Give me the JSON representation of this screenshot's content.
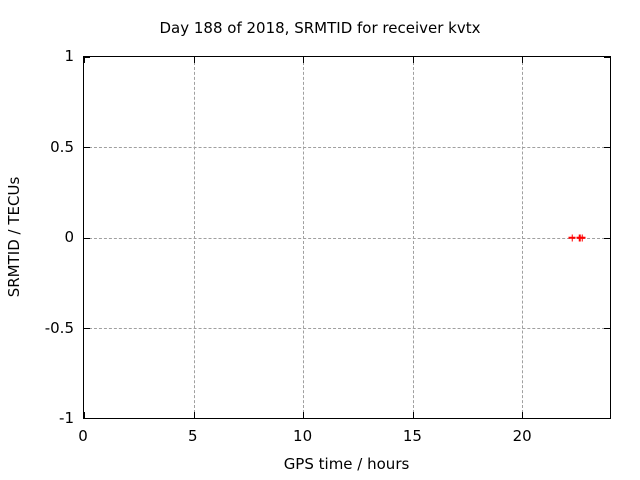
{
  "colors": {
    "marker": "#ff0000",
    "grid": "#a0a0a0",
    "axis": "#000000",
    "background": "#ffffff"
  },
  "chart_data": {
    "type": "scatter",
    "marker_style": "plus",
    "title": "Day 188 of 2018, SRMTID for receiver kvtx",
    "xlabel": "GPS time / hours",
    "ylabel": "SRMTID / TECUs",
    "xlim": [
      0,
      24
    ],
    "ylim": [
      -1,
      1
    ],
    "grid": true,
    "legend": "none",
    "xticks": [
      {
        "value": 0,
        "label": "0"
      },
      {
        "value": 5,
        "label": "5"
      },
      {
        "value": 10,
        "label": "10"
      },
      {
        "value": 15,
        "label": "15"
      },
      {
        "value": 20,
        "label": "20"
      }
    ],
    "yticks": [
      {
        "value": 1,
        "label": "1"
      },
      {
        "value": 0.5,
        "label": "0.5"
      },
      {
        "value": 0,
        "label": "0"
      },
      {
        "value": -0.5,
        "label": "-0.5"
      },
      {
        "value": -1,
        "label": "-1"
      }
    ],
    "series": [
      {
        "name": "SRMTID",
        "color": "#ff0000",
        "points": [
          {
            "x": 22.27,
            "y": 0
          },
          {
            "x": 22.63,
            "y": 0
          },
          {
            "x": 22.74,
            "y": 0
          }
        ]
      }
    ]
  }
}
